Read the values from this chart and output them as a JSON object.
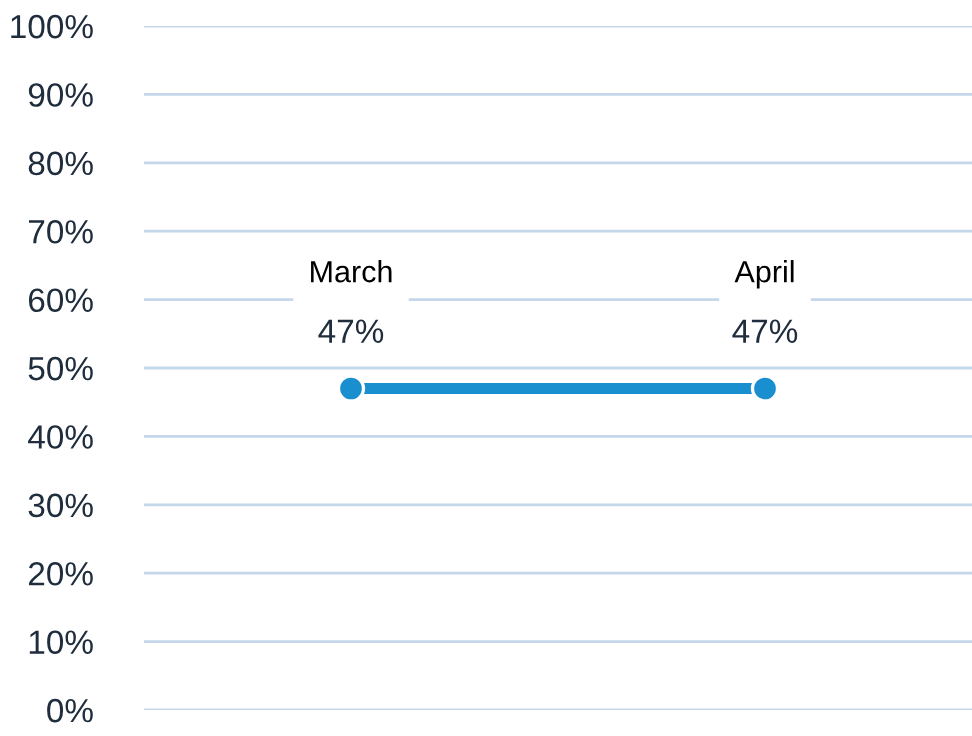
{
  "chart_data": {
    "type": "line",
    "categories": [
      "March",
      "April"
    ],
    "series": [
      {
        "color": "#1a8fd0",
        "values": [
          47,
          47
        ],
        "value_labels": [
          "47%",
          "47%"
        ]
      }
    ],
    "ylim": [
      0,
      100
    ],
    "yticks": [
      {
        "value": 0,
        "label": "0%"
      },
      {
        "value": 10,
        "label": "10%"
      },
      {
        "value": 20,
        "label": "20%"
      },
      {
        "value": 30,
        "label": "30%"
      },
      {
        "value": 40,
        "label": "40%"
      },
      {
        "value": 50,
        "label": "50%"
      },
      {
        "value": 60,
        "label": "60%"
      },
      {
        "value": 70,
        "label": "70%"
      },
      {
        "value": 80,
        "label": "80%"
      },
      {
        "value": 90,
        "label": "90%"
      },
      {
        "value": 100,
        "label": "100%"
      }
    ],
    "grid": "y",
    "marker": "circle",
    "line_style": "solid",
    "tick_labels": "y"
  }
}
